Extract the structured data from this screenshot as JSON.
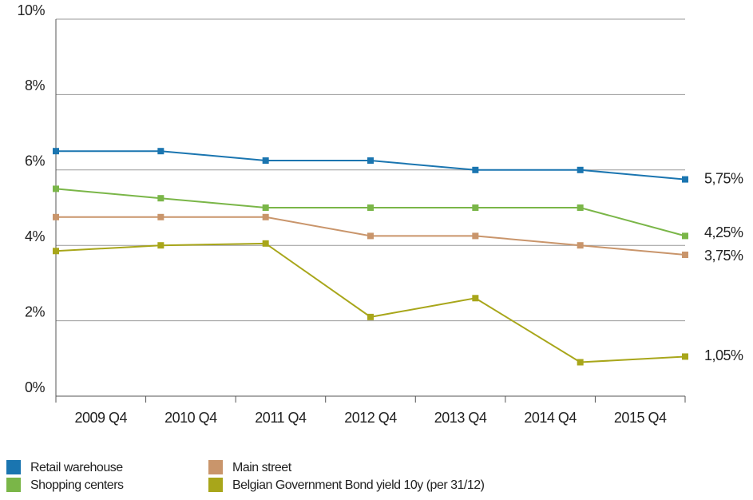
{
  "chart_data": {
    "type": "line",
    "categories": [
      "2009 Q4",
      "2010 Q4",
      "2011 Q4",
      "2012 Q4",
      "2013 Q4",
      "2014 Q4",
      "2015 Q4"
    ],
    "series": [
      {
        "name": "Retail warehouse",
        "color": "#1a75b0",
        "values": [
          6.5,
          6.5,
          6.25,
          6.25,
          6.0,
          6.0,
          5.75
        ],
        "value_labels": [
          null,
          null,
          null,
          null,
          null,
          null,
          "5,75%"
        ]
      },
      {
        "name": "Shopping centers",
        "color": "#7ab648",
        "values": [
          5.5,
          5.25,
          5.0,
          5.0,
          5.0,
          5.0,
          4.25
        ],
        "value_labels": [
          null,
          null,
          null,
          null,
          null,
          null,
          "4,25%"
        ]
      },
      {
        "name": "Main street",
        "color": "#c9956b",
        "values": [
          4.75,
          4.75,
          4.75,
          4.25,
          4.25,
          4.0,
          3.75
        ],
        "value_labels": [
          null,
          null,
          null,
          null,
          null,
          null,
          "3,75%"
        ]
      },
      {
        "name": "Belgian Government Bond yield 10y (per 31/12)",
        "color": "#a8a61a",
        "values": [
          3.85,
          4.0,
          4.05,
          2.1,
          2.6,
          0.9,
          1.05
        ],
        "value_labels": [
          null,
          null,
          null,
          null,
          null,
          null,
          "1,05%"
        ]
      }
    ],
    "ylim": [
      0,
      10
    ],
    "yticks": [
      {
        "value": 0,
        "label": "0%"
      },
      {
        "value": 2,
        "label": "2%"
      },
      {
        "value": 4,
        "label": "4%"
      },
      {
        "value": 6,
        "label": "6%"
      },
      {
        "value": 8,
        "label": "8%"
      },
      {
        "value": 10,
        "label": "10%"
      }
    ],
    "grid": true
  }
}
